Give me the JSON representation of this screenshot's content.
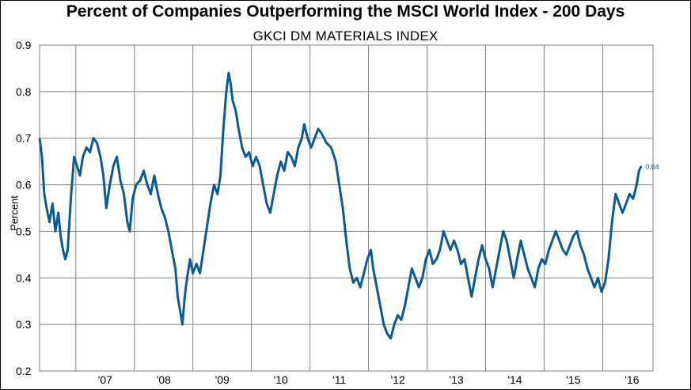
{
  "chart_data": {
    "type": "line",
    "title": "Percent of Companies Outperforming the MSCI World Index - 200 Days",
    "subtitle": "GKCI DM MATERIALS INDEX",
    "xlabel": "",
    "ylabel": "Percent",
    "ylim": [
      0.2,
      0.9
    ],
    "yticks": [
      "0.2",
      "0.3",
      "0.4",
      "0.5",
      "0.6",
      "0.7",
      "0.8",
      "0.9"
    ],
    "xlim": [
      2006.38,
      2016.86
    ],
    "xticks": [
      {
        "label": "'07",
        "x": 2007.5
      },
      {
        "label": "'08",
        "x": 2008.5
      },
      {
        "label": "'09",
        "x": 2009.5
      },
      {
        "label": "'10",
        "x": 2010.5
      },
      {
        "label": "'11",
        "x": 2011.5
      },
      {
        "label": "'12",
        "x": 2012.5
      },
      {
        "label": "'13",
        "x": 2013.5
      },
      {
        "label": "'14",
        "x": 2014.5
      },
      {
        "label": "'15",
        "x": 2015.5
      },
      {
        "label": "'16",
        "x": 2016.5
      }
    ],
    "year_boundaries": [
      2007,
      2008,
      2009,
      2010,
      2011,
      2012,
      2013,
      2014,
      2015,
      2016
    ],
    "grid": true,
    "last_value_label": "0.64",
    "series": [
      {
        "color": "#0b5a96",
        "points": [
          [
            2006.38,
            0.7
          ],
          [
            2006.42,
            0.66
          ],
          [
            2006.46,
            0.58
          ],
          [
            2006.5,
            0.55
          ],
          [
            2006.55,
            0.52
          ],
          [
            2006.6,
            0.56
          ],
          [
            2006.65,
            0.5
          ],
          [
            2006.7,
            0.54
          ],
          [
            2006.74,
            0.49
          ],
          [
            2006.78,
            0.46
          ],
          [
            2006.82,
            0.44
          ],
          [
            2006.86,
            0.46
          ],
          [
            2006.92,
            0.58
          ],
          [
            2006.97,
            0.66
          ],
          [
            2007.02,
            0.64
          ],
          [
            2007.07,
            0.62
          ],
          [
            2007.12,
            0.66
          ],
          [
            2007.18,
            0.68
          ],
          [
            2007.24,
            0.67
          ],
          [
            2007.3,
            0.7
          ],
          [
            2007.36,
            0.69
          ],
          [
            2007.42,
            0.66
          ],
          [
            2007.47,
            0.62
          ],
          [
            2007.52,
            0.55
          ],
          [
            2007.58,
            0.6
          ],
          [
            2007.64,
            0.64
          ],
          [
            2007.7,
            0.66
          ],
          [
            2007.76,
            0.61
          ],
          [
            2007.82,
            0.58
          ],
          [
            2007.88,
            0.52
          ],
          [
            2007.92,
            0.5
          ],
          [
            2007.97,
            0.57
          ],
          [
            2008.03,
            0.6
          ],
          [
            2008.1,
            0.61
          ],
          [
            2008.16,
            0.63
          ],
          [
            2008.22,
            0.6
          ],
          [
            2008.28,
            0.58
          ],
          [
            2008.34,
            0.62
          ],
          [
            2008.4,
            0.58
          ],
          [
            2008.46,
            0.55
          ],
          [
            2008.52,
            0.53
          ],
          [
            2008.58,
            0.5
          ],
          [
            2008.64,
            0.46
          ],
          [
            2008.7,
            0.42
          ],
          [
            2008.74,
            0.36
          ],
          [
            2008.78,
            0.33
          ],
          [
            2008.82,
            0.3
          ],
          [
            2008.86,
            0.36
          ],
          [
            2008.9,
            0.4
          ],
          [
            2008.95,
            0.44
          ],
          [
            2009.0,
            0.41
          ],
          [
            2009.06,
            0.43
          ],
          [
            2009.12,
            0.41
          ],
          [
            2009.18,
            0.46
          ],
          [
            2009.24,
            0.51
          ],
          [
            2009.3,
            0.56
          ],
          [
            2009.36,
            0.6
          ],
          [
            2009.42,
            0.58
          ],
          [
            2009.47,
            0.62
          ],
          [
            2009.52,
            0.72
          ],
          [
            2009.57,
            0.8
          ],
          [
            2009.61,
            0.84
          ],
          [
            2009.64,
            0.82
          ],
          [
            2009.68,
            0.78
          ],
          [
            2009.73,
            0.76
          ],
          [
            2009.78,
            0.72
          ],
          [
            2009.84,
            0.68
          ],
          [
            2009.9,
            0.66
          ],
          [
            2009.96,
            0.67
          ],
          [
            2010.02,
            0.64
          ],
          [
            2010.08,
            0.66
          ],
          [
            2010.14,
            0.64
          ],
          [
            2010.2,
            0.6
          ],
          [
            2010.26,
            0.56
          ],
          [
            2010.32,
            0.54
          ],
          [
            2010.38,
            0.58
          ],
          [
            2010.44,
            0.62
          ],
          [
            2010.5,
            0.65
          ],
          [
            2010.56,
            0.63
          ],
          [
            2010.62,
            0.67
          ],
          [
            2010.68,
            0.66
          ],
          [
            2010.74,
            0.64
          ],
          [
            2010.8,
            0.68
          ],
          [
            2010.86,
            0.7
          ],
          [
            2010.9,
            0.73
          ],
          [
            2010.96,
            0.7
          ],
          [
            2011.02,
            0.68
          ],
          [
            2011.08,
            0.7
          ],
          [
            2011.14,
            0.72
          ],
          [
            2011.2,
            0.71
          ],
          [
            2011.28,
            0.69
          ],
          [
            2011.36,
            0.68
          ],
          [
            2011.44,
            0.65
          ],
          [
            2011.5,
            0.6
          ],
          [
            2011.56,
            0.55
          ],
          [
            2011.62,
            0.48
          ],
          [
            2011.68,
            0.42
          ],
          [
            2011.74,
            0.39
          ],
          [
            2011.8,
            0.4
          ],
          [
            2011.86,
            0.38
          ],
          [
            2011.92,
            0.41
          ],
          [
            2011.98,
            0.44
          ],
          [
            2012.04,
            0.46
          ],
          [
            2012.08,
            0.42
          ],
          [
            2012.14,
            0.38
          ],
          [
            2012.2,
            0.34
          ],
          [
            2012.26,
            0.3
          ],
          [
            2012.32,
            0.28
          ],
          [
            2012.38,
            0.27
          ],
          [
            2012.44,
            0.3
          ],
          [
            2012.5,
            0.32
          ],
          [
            2012.56,
            0.31
          ],
          [
            2012.62,
            0.34
          ],
          [
            2012.68,
            0.38
          ],
          [
            2012.74,
            0.42
          ],
          [
            2012.8,
            0.4
          ],
          [
            2012.86,
            0.38
          ],
          [
            2012.92,
            0.4
          ],
          [
            2012.98,
            0.44
          ],
          [
            2013.04,
            0.46
          ],
          [
            2013.1,
            0.43
          ],
          [
            2013.16,
            0.44
          ],
          [
            2013.22,
            0.46
          ],
          [
            2013.28,
            0.5
          ],
          [
            2013.34,
            0.48
          ],
          [
            2013.4,
            0.46
          ],
          [
            2013.46,
            0.48
          ],
          [
            2013.52,
            0.46
          ],
          [
            2013.58,
            0.43
          ],
          [
            2013.64,
            0.44
          ],
          [
            2013.7,
            0.4
          ],
          [
            2013.76,
            0.36
          ],
          [
            2013.82,
            0.4
          ],
          [
            2013.88,
            0.44
          ],
          [
            2013.94,
            0.47
          ],
          [
            2014.0,
            0.44
          ],
          [
            2014.06,
            0.42
          ],
          [
            2014.12,
            0.38
          ],
          [
            2014.18,
            0.42
          ],
          [
            2014.24,
            0.46
          ],
          [
            2014.3,
            0.5
          ],
          [
            2014.36,
            0.48
          ],
          [
            2014.42,
            0.44
          ],
          [
            2014.48,
            0.4
          ],
          [
            2014.54,
            0.44
          ],
          [
            2014.6,
            0.48
          ],
          [
            2014.66,
            0.45
          ],
          [
            2014.72,
            0.42
          ],
          [
            2014.78,
            0.4
          ],
          [
            2014.84,
            0.38
          ],
          [
            2014.9,
            0.42
          ],
          [
            2014.96,
            0.44
          ],
          [
            2015.02,
            0.43
          ],
          [
            2015.08,
            0.46
          ],
          [
            2015.14,
            0.48
          ],
          [
            2015.2,
            0.5
          ],
          [
            2015.26,
            0.48
          ],
          [
            2015.32,
            0.46
          ],
          [
            2015.38,
            0.45
          ],
          [
            2015.44,
            0.47
          ],
          [
            2015.5,
            0.49
          ],
          [
            2015.56,
            0.5
          ],
          [
            2015.62,
            0.47
          ],
          [
            2015.68,
            0.45
          ],
          [
            2015.74,
            0.42
          ],
          [
            2015.8,
            0.4
          ],
          [
            2015.86,
            0.38
          ],
          [
            2015.92,
            0.4
          ],
          [
            2015.98,
            0.37
          ],
          [
            2016.04,
            0.39
          ],
          [
            2016.1,
            0.44
          ],
          [
            2016.16,
            0.52
          ],
          [
            2016.22,
            0.58
          ],
          [
            2016.28,
            0.56
          ],
          [
            2016.34,
            0.54
          ],
          [
            2016.4,
            0.56
          ],
          [
            2016.46,
            0.58
          ],
          [
            2016.52,
            0.57
          ],
          [
            2016.58,
            0.6
          ],
          [
            2016.62,
            0.63
          ],
          [
            2016.66,
            0.64
          ]
        ]
      }
    ]
  }
}
